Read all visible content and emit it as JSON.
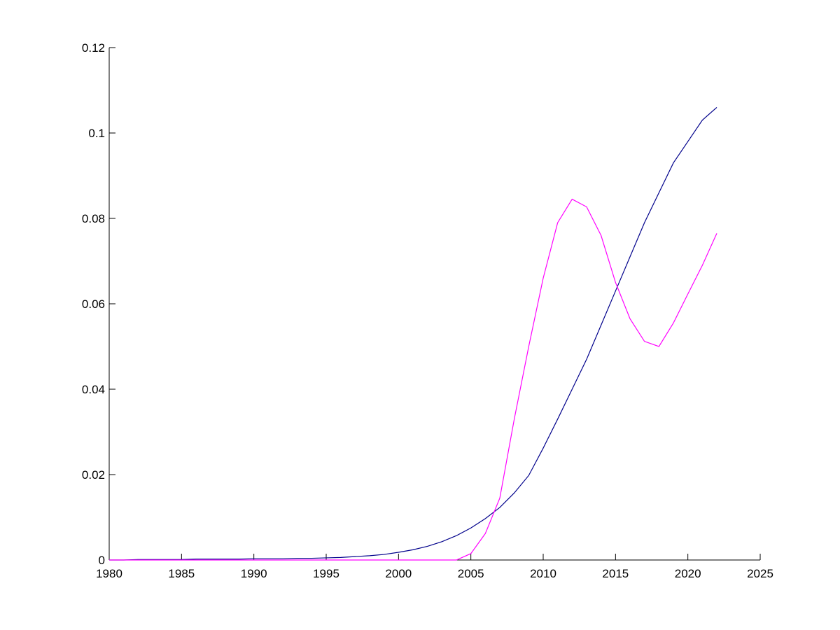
{
  "chart_data": {
    "type": "line",
    "x": [
      1980,
      1981,
      1982,
      1983,
      1984,
      1985,
      1986,
      1987,
      1988,
      1989,
      1990,
      1991,
      1992,
      1993,
      1994,
      1995,
      1996,
      1997,
      1998,
      1999,
      2000,
      2001,
      2002,
      2003,
      2004,
      2005,
      2006,
      2007,
      2008,
      2009,
      2010,
      2011,
      2012,
      2013,
      2014,
      2015,
      2016,
      2017,
      2018,
      2019,
      2020,
      2021,
      2022
    ],
    "series": [
      {
        "color": "#00008b",
        "values": [
          0,
          0,
          0.0001,
          0.0001,
          0.0001,
          0.0001,
          0.0002,
          0.0002,
          0.0002,
          0.0002,
          0.0003,
          0.0003,
          0.0003,
          0.0004,
          0.0004,
          0.0005,
          0.0006,
          0.0008,
          0.001,
          0.0013,
          0.0018,
          0.0024,
          0.0032,
          0.0043,
          0.0057,
          0.0075,
          0.0097,
          0.0123,
          0.0157,
          0.0198,
          0.0262,
          0.033,
          0.04,
          0.047,
          0.055,
          0.063,
          0.071,
          0.079,
          0.086,
          0.093,
          0.098,
          0.103,
          0.106
        ]
      },
      {
        "color": "#ff00ff",
        "values": [
          0,
          0,
          0,
          0,
          0,
          0,
          0,
          0,
          0,
          0,
          0,
          0,
          0,
          0,
          0,
          0,
          0,
          0,
          0,
          0,
          0,
          0,
          0,
          0,
          0,
          0.0015,
          0.0062,
          0.0145,
          0.033,
          0.05,
          0.066,
          0.079,
          0.0845,
          0.0827,
          0.076,
          0.065,
          0.0565,
          0.0512,
          0.05,
          0.0555,
          0.0623,
          0.069,
          0.0765
        ]
      }
    ],
    "xlim": [
      1980,
      2025
    ],
    "xticks": [
      1980,
      1985,
      1990,
      1995,
      2000,
      2005,
      2010,
      2015,
      2020,
      2025
    ],
    "ylim": [
      0,
      0.12
    ],
    "yticks": [
      0,
      0.02,
      0.04,
      0.06,
      0.08,
      0.1,
      0.12
    ],
    "grid": false
  }
}
